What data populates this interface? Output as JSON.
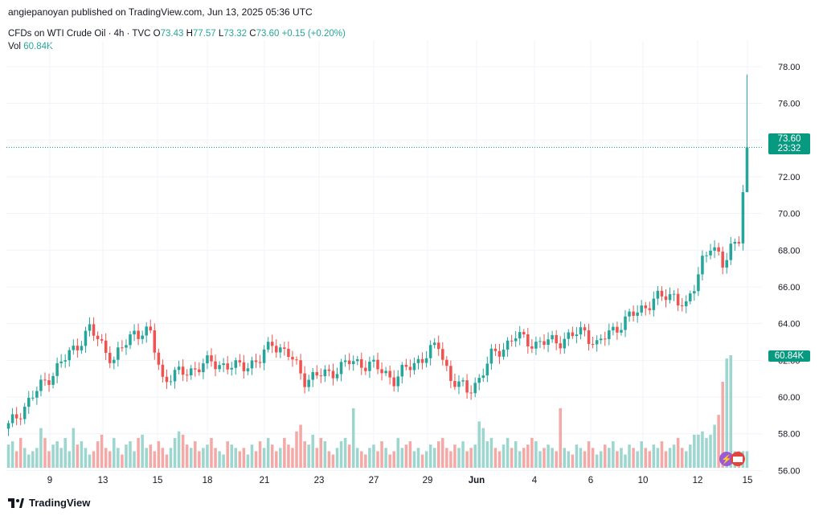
{
  "header": {
    "publisher_line": "angiepanoyan published on TradingView.com, Jun 13, 2025 05:36 UTC"
  },
  "legend": {
    "symbol": "CFDs on WTI Crude Oil · 4h · TVC",
    "open_label": "O",
    "open": "73.43",
    "high_label": "H",
    "high": "77.57",
    "low_label": "L",
    "low": "73.32",
    "close_label": "C",
    "close": "73.60",
    "change": "+0.15 (+0.20%)",
    "vol_label": "Vol",
    "vol": "60.84K"
  },
  "price_tag": {
    "price": "73.60",
    "countdown": "23:32"
  },
  "volume_tag": "60.84K",
  "footer": {
    "brand": "TradingView"
  },
  "colors": {
    "up": "#26a69a",
    "down": "#ef5350",
    "up_vol": "#9dd6cf",
    "down_vol": "#f5a9a7",
    "grid": "#f0f3fa"
  },
  "chart_data": {
    "type": "candlestick",
    "y_ticks": [
      "78.00",
      "76.00",
      "74.00",
      "72.00",
      "70.00",
      "68.00",
      "66.00",
      "64.00",
      "62.00",
      "60.00",
      "58.00",
      "56.00"
    ],
    "ylim": [
      55.8,
      79.0
    ],
    "x_ticks": [
      "9",
      "13",
      "15",
      "18",
      "21",
      "23",
      "27",
      "29",
      "Jun",
      "4",
      "6",
      "10",
      "12",
      "15"
    ],
    "last_price": 73.6,
    "anchors": [
      [
        0,
        58.4
      ],
      [
        8,
        60.6
      ],
      [
        16,
        62.6
      ],
      [
        20,
        63.7
      ],
      [
        26,
        62.0
      ],
      [
        31,
        63.6
      ],
      [
        35,
        63.4
      ],
      [
        38,
        61.0
      ],
      [
        44,
        61.4
      ],
      [
        50,
        61.9
      ],
      [
        56,
        61.6
      ],
      [
        62,
        62.0
      ],
      [
        65,
        63.0
      ],
      [
        69,
        62.3
      ],
      [
        73,
        61.0
      ],
      [
        79,
        61.3
      ],
      [
        84,
        61.9
      ],
      [
        89,
        61.8
      ],
      [
        95,
        61.0
      ],
      [
        101,
        62.0
      ],
      [
        106,
        62.8
      ],
      [
        109,
        61.0
      ],
      [
        113,
        60.3
      ],
      [
        116,
        61.0
      ],
      [
        119,
        62.2
      ],
      [
        125,
        63.3
      ],
      [
        130,
        62.9
      ],
      [
        136,
        63.1
      ],
      [
        142,
        63.6
      ],
      [
        145,
        62.8
      ],
      [
        148,
        63.5
      ],
      [
        154,
        64.5
      ],
      [
        159,
        65.3
      ],
      [
        164,
        65.6
      ],
      [
        167,
        64.8
      ],
      [
        169,
        66.0
      ],
      [
        171,
        67.6
      ],
      [
        173,
        68.2
      ],
      [
        176,
        67.2
      ],
      [
        178,
        68.3
      ],
      [
        180,
        68.6
      ],
      [
        182,
        73.5
      ]
    ],
    "volumes": [
      0.7,
      0.8,
      0.5,
      0.9,
      0.6,
      0.4,
      0.5,
      0.6,
      1.2,
      0.9,
      0.5,
      0.7,
      0.8,
      0.6,
      0.9,
      0.5,
      1.2,
      0.7,
      0.8,
      0.6,
      0.4,
      0.5,
      0.8,
      1.0,
      0.6,
      0.5,
      0.9,
      0.6,
      0.4,
      0.7,
      0.8,
      0.5,
      0.9,
      1.0,
      0.6,
      0.7,
      0.5,
      0.8,
      0.6,
      0.4,
      0.6,
      0.9,
      1.1,
      1.0,
      0.7,
      0.6,
      0.8,
      0.5,
      0.6,
      0.7,
      0.9,
      0.6,
      0.5,
      0.4,
      0.8,
      0.7,
      0.6,
      0.5,
      0.6,
      0.4,
      0.7,
      0.5,
      0.8,
      0.6,
      0.9,
      0.7,
      0.5,
      0.6,
      0.9,
      0.7,
      0.6,
      1.1,
      1.3,
      0.8,
      0.7,
      1.0,
      0.6,
      0.9,
      0.8,
      0.5,
      0.4,
      0.6,
      0.8,
      0.9,
      0.7,
      1.8,
      0.6,
      0.5,
      0.4,
      0.6,
      0.7,
      0.5,
      0.8,
      0.6,
      0.4,
      0.5,
      0.9,
      0.6,
      0.7,
      0.8,
      0.5,
      0.6,
      0.4,
      0.5,
      0.7,
      0.6,
      0.8,
      0.9,
      0.6,
      0.5,
      0.7,
      0.6,
      0.8,
      0.5,
      0.6,
      0.7,
      1.4,
      1.2,
      0.8,
      0.9,
      0.6,
      0.5,
      0.7,
      0.9,
      0.6,
      0.8,
      0.5,
      0.6,
      0.7,
      0.9,
      0.8,
      0.5,
      0.6,
      0.7,
      0.6,
      0.5,
      1.8,
      0.6,
      0.5,
      0.4,
      0.7,
      0.6,
      0.5,
      0.8,
      0.6,
      0.4,
      0.5,
      0.7,
      0.6,
      0.8,
      0.5,
      0.6,
      0.4,
      0.7,
      0.6,
      0.5,
      0.8,
      0.6,
      0.5,
      0.7,
      0.6,
      0.8,
      0.5,
      0.6,
      0.7,
      0.9,
      0.6,
      0.5,
      0.7,
      1.0,
      1.0,
      1.1,
      0.9,
      1.0,
      1.3,
      1.6,
      2.6,
      3.3,
      3.4
    ]
  }
}
